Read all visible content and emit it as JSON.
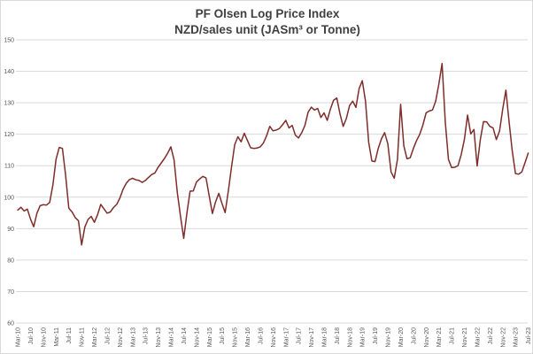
{
  "chart_data": {
    "type": "line",
    "title": "PF Olsen Log Price Index",
    "subtitle": "NZD/sales unit (JASm³ or Tonne)",
    "frequency": "monthly",
    "x_start": "Mar-10",
    "x_end": "Jul-23",
    "grid": "horizontal",
    "legend": "none",
    "line_color": "#7E2D2A",
    "grid_color": "#d9d9d9",
    "axis_text_color": "#595959",
    "y_axis": {
      "min": 60,
      "max": 150,
      "step": 10,
      "tick_labels": [
        "60",
        "70",
        "80",
        "90",
        "100",
        "110",
        "120",
        "130",
        "140",
        "150"
      ]
    },
    "x_axis": {
      "tick_every_months": 4,
      "tick_labels": [
        "Mar-10",
        "Jul-10",
        "Nov-10",
        "Mar-11",
        "Jul-11",
        "Nov-11",
        "Mar-12",
        "Jul-12",
        "Nov-12",
        "Mar-13",
        "Jul-13",
        "Nov-13",
        "Mar-14",
        "Jul-14",
        "Nov-14",
        "Mar-15",
        "Jul-15",
        "Nov-15",
        "Mar-16",
        "Jul-16",
        "Nov-16",
        "Mar-17",
        "Jul-17",
        "Nov-17",
        "Mar-18",
        "Jul-18",
        "Nov-18",
        "Mar-19",
        "Jul-19",
        "Nov-19",
        "Mar-20",
        "Jul-20",
        "Nov-20",
        "Mar-21",
        "Jul-21",
        "Nov-21",
        "Mar-22",
        "Jul-22",
        "Nov-22",
        "Mar-23",
        "Jul-23"
      ]
    },
    "series": [
      {
        "name": "PF Olsen Log Price Index",
        "values": [
          95.9,
          96.8,
          95.6,
          96.2,
          93.0,
          90.6,
          94.9,
          97.3,
          97.6,
          97.5,
          98.3,
          103.8,
          112.0,
          115.8,
          115.5,
          107.0,
          96.5,
          95.3,
          93.5,
          92.5,
          84.8,
          90.5,
          92.9,
          93.9,
          92.0,
          94.4,
          97.7,
          96.3,
          94.9,
          95.3,
          96.7,
          97.7,
          99.7,
          102.5,
          104.4,
          105.6,
          106.0,
          105.5,
          105.3,
          104.7,
          105.3,
          106.3,
          107.2,
          107.7,
          109.5,
          110.9,
          112.3,
          114.0,
          116.0,
          111.8,
          101.4,
          93.9,
          86.9,
          94.9,
          101.9,
          102.0,
          104.8,
          105.8,
          106.6,
          106.1,
          100.4,
          94.8,
          98.5,
          101.2,
          98.0,
          95.1,
          102.0,
          109.6,
          116.7,
          119.2,
          117.6,
          120.3,
          118.0,
          115.7,
          115.5,
          115.6,
          116.0,
          117.2,
          119.5,
          122.5,
          121.1,
          121.3,
          121.8,
          123.0,
          124.4,
          122.0,
          122.8,
          119.7,
          118.8,
          120.5,
          122.8,
          127.0,
          128.6,
          127.7,
          128.2,
          125.3,
          126.8,
          124.4,
          128.0,
          130.8,
          131.5,
          126.5,
          122.5,
          125.0,
          129.1,
          130.5,
          128.5,
          134.5,
          137.0,
          130.5,
          117.5,
          111.5,
          111.3,
          115.5,
          118.5,
          120.5,
          117.0,
          108.0,
          106.0,
          112.0,
          129.5,
          116.3,
          112.2,
          112.5,
          115.5,
          118.0,
          120.0,
          123.0,
          126.8,
          127.4,
          127.7,
          130.5,
          136.0,
          142.5,
          124.0,
          112.0,
          109.4,
          109.5,
          110.0,
          113.5,
          118.3,
          126.1,
          120.1,
          121.5,
          109.9,
          118.3,
          124.0,
          123.9,
          122.5,
          122.0,
          118.3,
          121.0,
          128.0,
          134.0,
          123.9,
          114.6,
          107.5,
          107.3,
          108.0,
          111.0,
          114.0
        ]
      }
    ]
  }
}
